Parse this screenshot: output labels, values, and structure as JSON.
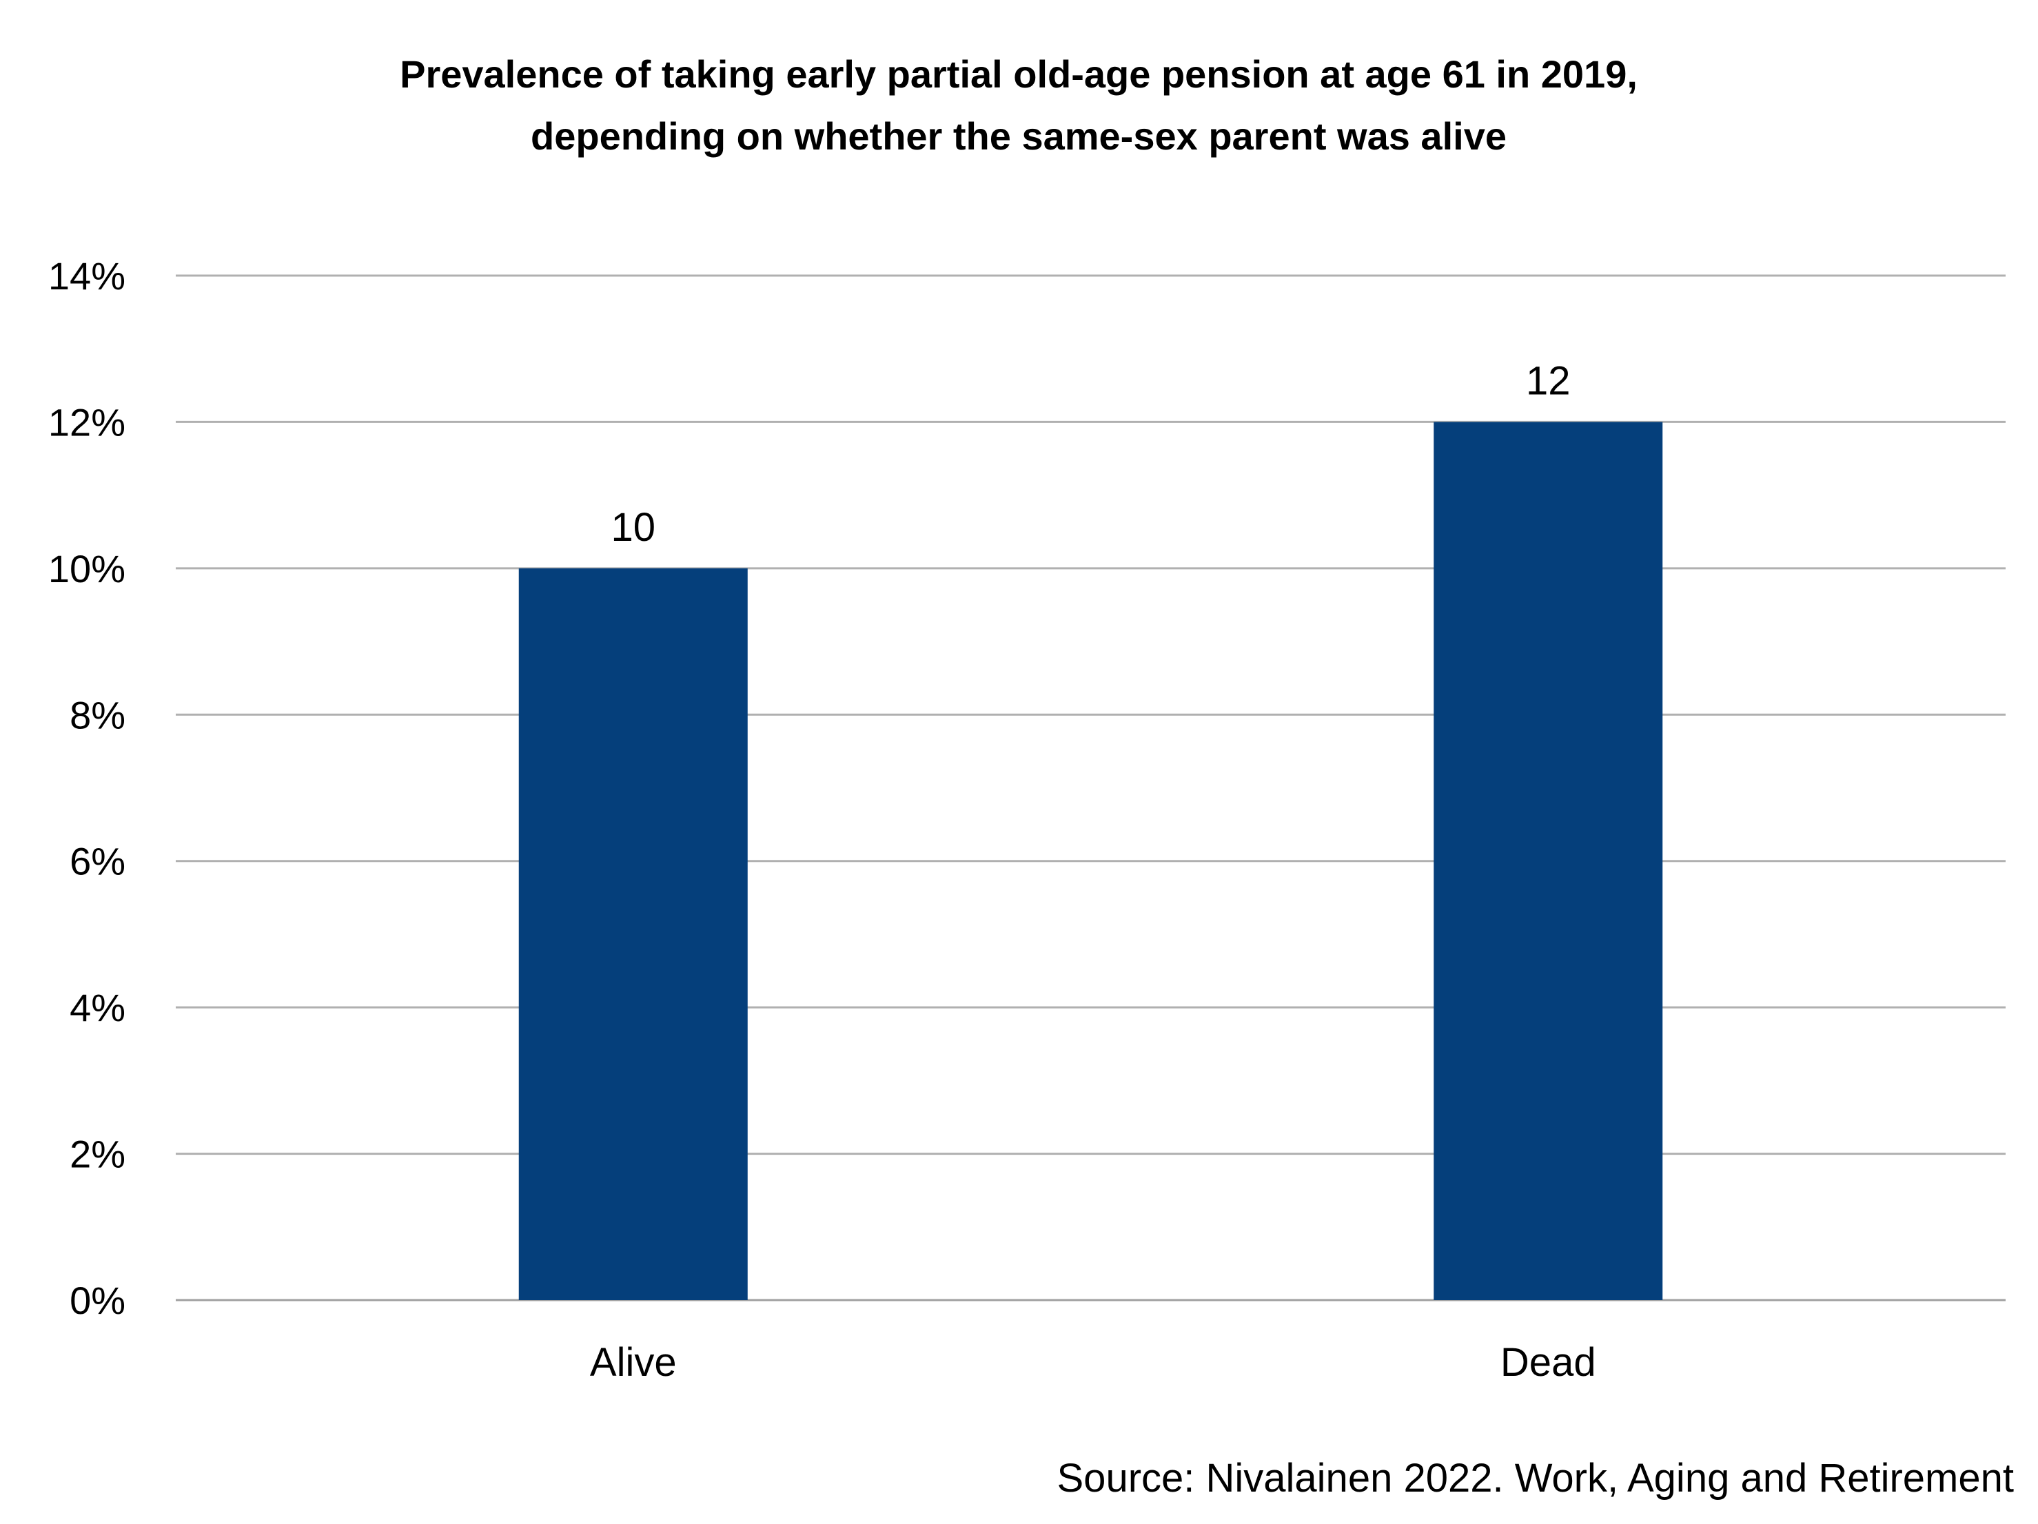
{
  "chart_data": {
    "type": "bar",
    "title_lines": [
      "Prevalence of taking early partial old-age pension at age 61 in 2019,",
      "depending on whether the same-sex parent was alive"
    ],
    "categories": [
      "Alive",
      "Dead"
    ],
    "values": [
      10,
      12
    ],
    "data_labels": [
      "10",
      "12"
    ],
    "y_ticks": [
      0,
      2,
      4,
      6,
      8,
      10,
      12,
      14
    ],
    "y_tick_labels": [
      "0%",
      "2%",
      "4%",
      "6%",
      "8%",
      "10%",
      "12%",
      "14%"
    ],
    "ylim": [
      0,
      14
    ],
    "xlabel": "",
    "ylabel": "",
    "grid": true,
    "legend": "none",
    "bar_color": "#053f7b",
    "gridline_color": "#b0b0b0"
  },
  "source": "Source: Nivalainen 2022. Work, Aging and Retirement"
}
